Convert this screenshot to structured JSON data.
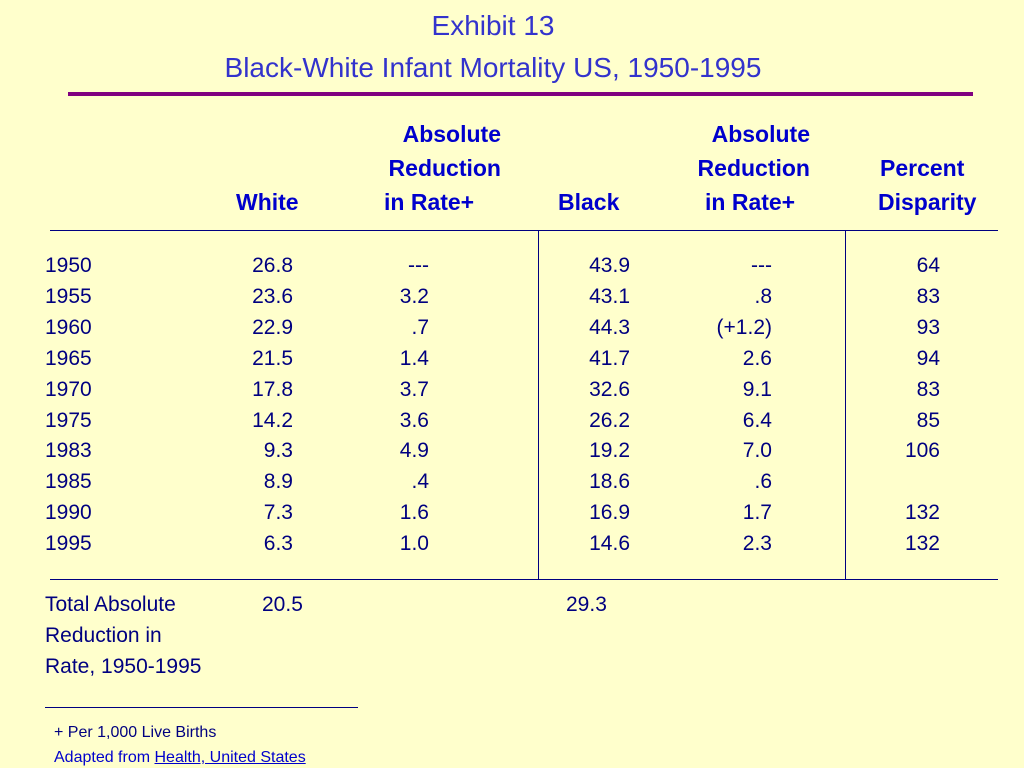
{
  "title": {
    "line1": "Exhibit 13",
    "line2": "Black-White Infant Mortality US, 1950-1995"
  },
  "headers": {
    "white": "White",
    "abs_white": [
      "Absolute",
      "Reduction",
      "in Rate+"
    ],
    "black": "Black",
    "abs_black": [
      "Absolute",
      "Reduction",
      "in Rate+"
    ],
    "percent": [
      "Percent",
      "Disparity"
    ]
  },
  "rows": [
    {
      "year": "1950",
      "white": "26.8",
      "abs_white": "---",
      "black": "43.9",
      "abs_black": "---",
      "disparity": "64"
    },
    {
      "year": "1955",
      "white": "23.6",
      "abs_white": "3.2",
      "black": "43.1",
      "abs_black": ".8",
      "disparity": "83"
    },
    {
      "year": "1960",
      "white": "22.9",
      "abs_white": ".7",
      "black": "44.3",
      "abs_black": "(+1.2)",
      "disparity": "93"
    },
    {
      "year": "1965",
      "white": "21.5",
      "abs_white": "1.4",
      "black": "41.7",
      "abs_black": "2.6",
      "disparity": "94"
    },
    {
      "year": "1970",
      "white": "17.8",
      "abs_white": "3.7",
      "black": "32.6",
      "abs_black": "9.1",
      "disparity": "83"
    },
    {
      "year": "1975",
      "white": "14.2",
      "abs_white": "3.6",
      "black": "26.2",
      "abs_black": "6.4",
      "disparity": "85"
    },
    {
      "year": "1983",
      "white": "9.3",
      "abs_white": "4.9",
      "black": "19.2",
      "abs_black": "7.0",
      "disparity": "106"
    },
    {
      "year": "1985",
      "white": "8.9",
      "abs_white": ".4",
      "black": "18.6",
      "abs_black": ".6",
      "disparity": ""
    },
    {
      "year": "1990",
      "white": "7.3",
      "abs_white": "1.6",
      "black": "16.9",
      "abs_black": "1.7",
      "disparity": "132"
    },
    {
      "year": "1995",
      "white": "6.3",
      "abs_white": "1.0",
      "black": "14.6",
      "abs_black": "2.3",
      "disparity": "132"
    }
  ],
  "total": {
    "label": [
      "Total Absolute",
      "Reduction in",
      "Rate, 1950-1995"
    ],
    "white": "20.5",
    "black": "29.3"
  },
  "footnotes": {
    "note": "+ Per 1,000 Live Births",
    "source_prefix": "Adapted from ",
    "source_link": "Health, United States"
  },
  "colors": {
    "background": "#ffffcc",
    "title": "#3333cc",
    "rule": "#800080",
    "text": "#000080"
  }
}
